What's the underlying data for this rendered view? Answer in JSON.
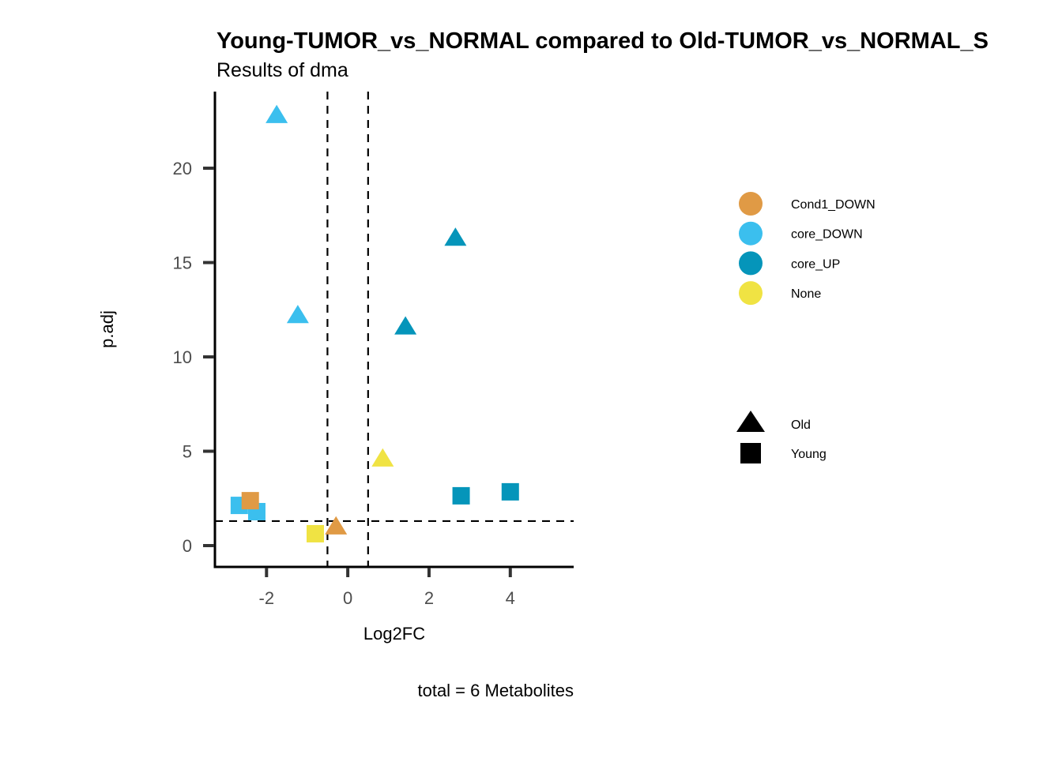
{
  "chart_data": {
    "type": "scatter",
    "title": "Young-TUMOR_vs_NORMAL compared to Old-TUMOR_vs_NORMAL_S",
    "subtitle": "Results of dma",
    "xlabel": "Log2FC",
    "ylabel": "p.adj",
    "caption": "total = 6 Metabolites",
    "xlim": [
      -3.27,
      5.56
    ],
    "ylim": [
      -1.13,
      24.06
    ],
    "x_ticks": [
      -2,
      0,
      2,
      4
    ],
    "x_tick_labels": [
      "-2",
      "0",
      "2",
      "4"
    ],
    "y_ticks": [
      0,
      5,
      10,
      15,
      20
    ],
    "y_tick_labels": [
      "0",
      "5",
      "10",
      "15",
      "20"
    ],
    "grid": false,
    "reference_lines": {
      "vertical": [
        -0.5,
        0.5
      ],
      "horizontal": [
        1.3
      ]
    },
    "color_legend": {
      "placement": "right",
      "entries": [
        {
          "name": "Cond1_DOWN",
          "color": "#E09A45"
        },
        {
          "name": "core_DOWN",
          "color": "#3BBFEE"
        },
        {
          "name": "core_UP",
          "color": "#0595BA"
        },
        {
          "name": "None",
          "color": "#F0E343"
        }
      ]
    },
    "shape_legend": {
      "placement": "right",
      "entries": [
        {
          "name": "Old",
          "shape": "triangle"
        },
        {
          "name": "Young",
          "shape": "square"
        }
      ]
    },
    "points": [
      {
        "x": -1.75,
        "y": 22.8,
        "group": "core_DOWN",
        "shape": "Old"
      },
      {
        "x": -1.23,
        "y": 12.2,
        "group": "core_DOWN",
        "shape": "Old"
      },
      {
        "x": 2.65,
        "y": 16.3,
        "group": "core_UP",
        "shape": "Old"
      },
      {
        "x": 1.42,
        "y": 11.6,
        "group": "core_UP",
        "shape": "Old"
      },
      {
        "x": 0.86,
        "y": 4.6,
        "group": "None",
        "shape": "Old"
      },
      {
        "x": -0.29,
        "y": 1.0,
        "group": "Cond1_DOWN",
        "shape": "Old"
      },
      {
        "x": -2.67,
        "y": 2.13,
        "group": "core_DOWN",
        "shape": "Young"
      },
      {
        "x": -2.24,
        "y": 1.8,
        "group": "core_DOWN",
        "shape": "Young"
      },
      {
        "x": -2.4,
        "y": 2.38,
        "group": "Cond1_DOWN",
        "shape": "Young"
      },
      {
        "x": -0.8,
        "y": 0.63,
        "group": "None",
        "shape": "Young"
      },
      {
        "x": 2.79,
        "y": 2.64,
        "group": "core_UP",
        "shape": "Young"
      },
      {
        "x": 4.0,
        "y": 2.85,
        "group": "core_UP",
        "shape": "Young"
      }
    ]
  }
}
